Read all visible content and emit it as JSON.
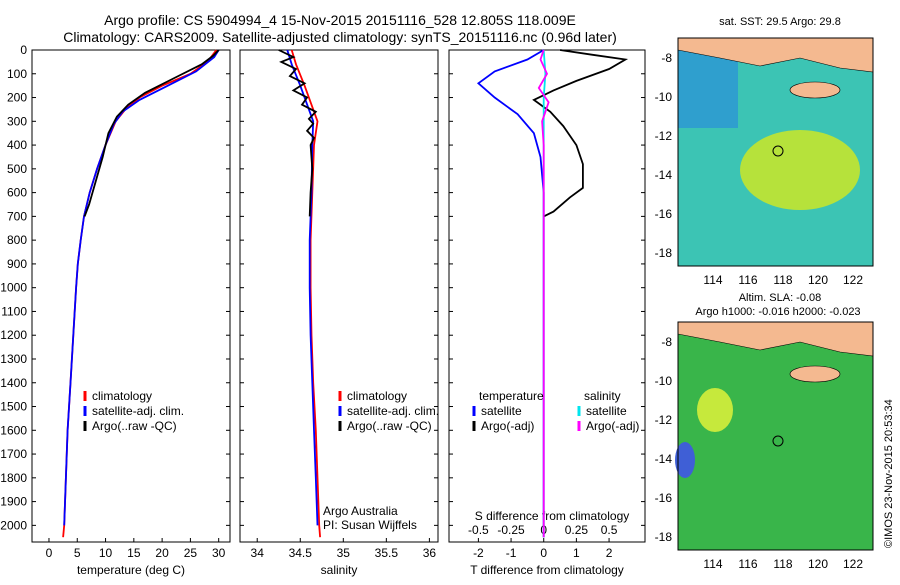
{
  "header": {
    "line1": "Argo profile: CS 5904994_4 15-Nov-2015 20151116_528 12.805S 118.009E",
    "line2": "Climatology: CARS2009. Satellite-adjusted climatology: synTS_20151116.nc (0.96d later)"
  },
  "colors": {
    "climatology": "#ff0000",
    "satellite": "#0000ff",
    "argo": "#000000",
    "sat_salinity": "#00e5ee",
    "argo_adj_salinity": "#ff00ff",
    "land": "#f4b990",
    "ocean_green": "#39b54a"
  },
  "chart_data": [
    {
      "type": "line",
      "id": "temperature",
      "xlabel": "temperature (deg C)",
      "xticks": [
        "0",
        "5",
        "10",
        "15",
        "20",
        "25",
        "30"
      ],
      "xlim": [
        -3,
        32
      ],
      "yticks": [
        "0",
        "100",
        "200",
        "300",
        "400",
        "500",
        "600",
        "700",
        "800",
        "900",
        "1000",
        "1100",
        "1200",
        "1300",
        "1400",
        "1500",
        "1600",
        "1700",
        "1800",
        "1900",
        "2000"
      ],
      "ylim": [
        0,
        2070
      ],
      "legend": [
        "climatology",
        "satellite-adj. clim.",
        "Argo(..raw -QC)"
      ],
      "series": [
        {
          "name": "climatology",
          "color": "#ff0000",
          "points": [
            [
              29.6,
              0
            ],
            [
              28,
              50
            ],
            [
              25,
              100
            ],
            [
              20,
              150
            ],
            [
              16,
              200
            ],
            [
              13.5,
              250
            ],
            [
              11.8,
              300
            ],
            [
              10,
              400
            ],
            [
              8.5,
              500
            ],
            [
              7.2,
              600
            ],
            [
              6.2,
              700
            ],
            [
              5.6,
              800
            ],
            [
              5.1,
              900
            ],
            [
              4.8,
              1000
            ],
            [
              4.3,
              1200
            ],
            [
              3.8,
              1400
            ],
            [
              3.3,
              1600
            ],
            [
              3,
              1800
            ],
            [
              2.7,
              2000
            ],
            [
              2.5,
              2050
            ]
          ]
        },
        {
          "name": "satellite-adj. clim.",
          "color": "#0000ff",
          "points": [
            [
              30,
              0
            ],
            [
              29.2,
              30
            ],
            [
              26,
              90
            ],
            [
              21,
              150
            ],
            [
              16,
              210
            ],
            [
              13,
              260
            ],
            [
              11.5,
              310
            ],
            [
              10,
              400
            ],
            [
              8.5,
              500
            ],
            [
              7.2,
              600
            ],
            [
              6.2,
              700
            ],
            [
              5.6,
              800
            ],
            [
              5.1,
              900
            ],
            [
              4.8,
              1000
            ],
            [
              4.3,
              1200
            ],
            [
              3.8,
              1400
            ],
            [
              3.3,
              1600
            ],
            [
              3,
              1800
            ],
            [
              2.7,
              2000
            ]
          ]
        },
        {
          "name": "Argo(..raw -QC)",
          "color": "#000000",
          "points": [
            [
              30,
              0
            ],
            [
              29,
              25
            ],
            [
              27,
              60
            ],
            [
              22,
              120
            ],
            [
              17,
              180
            ],
            [
              14,
              230
            ],
            [
              12,
              280
            ],
            [
              10.5,
              350
            ],
            [
              9.5,
              450
            ],
            [
              8.3,
              550
            ],
            [
              7.1,
              650
            ],
            [
              6.3,
              700
            ]
          ]
        }
      ]
    },
    {
      "type": "line",
      "id": "salinity",
      "xlabel": "salinity",
      "xticks": [
        "34",
        "34.5",
        "35",
        "35.5",
        "36"
      ],
      "xlim": [
        33.8,
        36.1
      ],
      "ylim": [
        0,
        2070
      ],
      "legend": [
        "climatology",
        "satellite-adj. clim.",
        "Argo(..raw -QC)"
      ],
      "annotation": [
        "Argo Australia",
        "PI: Susan Wijffels"
      ],
      "series": [
        {
          "name": "climatology",
          "color": "#ff0000",
          "points": [
            [
              34.4,
              0
            ],
            [
              34.45,
              60
            ],
            [
              34.55,
              150
            ],
            [
              34.65,
              250
            ],
            [
              34.7,
              300
            ],
            [
              34.66,
              400
            ],
            [
              34.64,
              600
            ],
            [
              34.62,
              800
            ],
            [
              34.62,
              1000
            ],
            [
              34.63,
              1200
            ],
            [
              34.65,
              1400
            ],
            [
              34.68,
              1600
            ],
            [
              34.7,
              1800
            ],
            [
              34.72,
              2000
            ],
            [
              34.73,
              2050
            ]
          ]
        },
        {
          "name": "satellite-adj. clim.",
          "color": "#0000ff",
          "points": [
            [
              34.35,
              0
            ],
            [
              34.4,
              60
            ],
            [
              34.5,
              150
            ],
            [
              34.6,
              250
            ],
            [
              34.65,
              300
            ],
            [
              34.64,
              400
            ],
            [
              34.63,
              600
            ],
            [
              34.61,
              800
            ],
            [
              34.61,
              1000
            ],
            [
              34.62,
              1200
            ],
            [
              34.64,
              1400
            ],
            [
              34.66,
              1600
            ],
            [
              34.68,
              1800
            ],
            [
              34.7,
              2000
            ]
          ]
        },
        {
          "name": "Argo(..raw -QC)",
          "color": "#000000",
          "points": [
            [
              34.25,
              0
            ],
            [
              34.42,
              30
            ],
            [
              34.28,
              50
            ],
            [
              34.45,
              80
            ],
            [
              34.38,
              110
            ],
            [
              34.55,
              140
            ],
            [
              34.42,
              170
            ],
            [
              34.58,
              200
            ],
            [
              34.52,
              230
            ],
            [
              34.68,
              260
            ],
            [
              34.6,
              290
            ],
            [
              34.65,
              310
            ],
            [
              34.58,
              340
            ],
            [
              34.66,
              370
            ],
            [
              34.62,
              400
            ],
            [
              34.64,
              500
            ],
            [
              34.62,
              600
            ],
            [
              34.61,
              700
            ]
          ]
        }
      ]
    },
    {
      "type": "line",
      "id": "differences",
      "xlabel": "T difference from climatology",
      "xticks": [
        "-2",
        "-1",
        "0",
        "1",
        "2"
      ],
      "xlim": [
        -2.9,
        3.1
      ],
      "top_label": "S difference from climatology",
      "top_ticks": [
        "-0.5",
        "-0.25",
        "0",
        "0.25",
        "0.5"
      ],
      "ylim": [
        0,
        2070
      ],
      "legend_titles": [
        "temperature",
        "salinity"
      ],
      "legend": [
        "satellite",
        "Argo(-adj)",
        "satellite",
        "Argo(-adj)"
      ],
      "series": [
        {
          "name": "temperature satellite",
          "color": "#0000ff",
          "points": [
            [
              0,
              0
            ],
            [
              -0.5,
              40
            ],
            [
              -1.5,
              90
            ],
            [
              -2,
              140
            ],
            [
              -1.5,
              200
            ],
            [
              -0.8,
              270
            ],
            [
              -0.3,
              350
            ],
            [
              -0.1,
              450
            ],
            [
              0,
              600
            ],
            [
              0,
              2050
            ]
          ]
        },
        {
          "name": "temperature Argo(-adj)",
          "color": "#000000",
          "points": [
            [
              0.5,
              0
            ],
            [
              1.5,
              20
            ],
            [
              2.5,
              40
            ],
            [
              2,
              80
            ],
            [
              1,
              130
            ],
            [
              0.3,
              170
            ],
            [
              -0.3,
              210
            ],
            [
              0.2,
              260
            ],
            [
              0.6,
              320
            ],
            [
              1,
              400
            ],
            [
              1.2,
              480
            ],
            [
              1.2,
              580
            ],
            [
              0.8,
              620
            ],
            [
              0.3,
              680
            ],
            [
              0,
              700
            ]
          ]
        },
        {
          "name": "salinity satellite",
          "color": "#00e5ee",
          "points": [
            [
              0,
              0
            ],
            [
              0.05,
              100
            ],
            [
              0,
              200
            ],
            [
              0,
              400
            ],
            [
              0,
              800
            ],
            [
              0,
              2050
            ]
          ]
        },
        {
          "name": "salinity Argo(-adj)",
          "color": "#ff00ff",
          "points": [
            [
              0,
              0
            ],
            [
              -0.1,
              40
            ],
            [
              0.1,
              100
            ],
            [
              -0.15,
              160
            ],
            [
              0.15,
              220
            ],
            [
              0.05,
              260
            ],
            [
              -0.05,
              300
            ],
            [
              0,
              400
            ],
            [
              0,
              2050
            ]
          ]
        }
      ]
    }
  ],
  "maps": [
    {
      "title": "sat. SST: 29.5  Argo: 29.8",
      "yticks": [
        "-8",
        "-10",
        "-12",
        "-14",
        "-16",
        "-18"
      ],
      "xticks": [
        "114",
        "116",
        "118",
        "120",
        "122"
      ]
    },
    {
      "title": "Altim. SLA: -0.08",
      "subtitle": "Argo h1000: -0.016 h2000: -0.023",
      "yticks": [
        "-8",
        "-10",
        "-12",
        "-14",
        "-16",
        "-18"
      ],
      "xticks": [
        "114",
        "116",
        "118",
        "120",
        "122"
      ]
    }
  ],
  "credit": "©IMOS 23-Nov-2015 20:53:34"
}
